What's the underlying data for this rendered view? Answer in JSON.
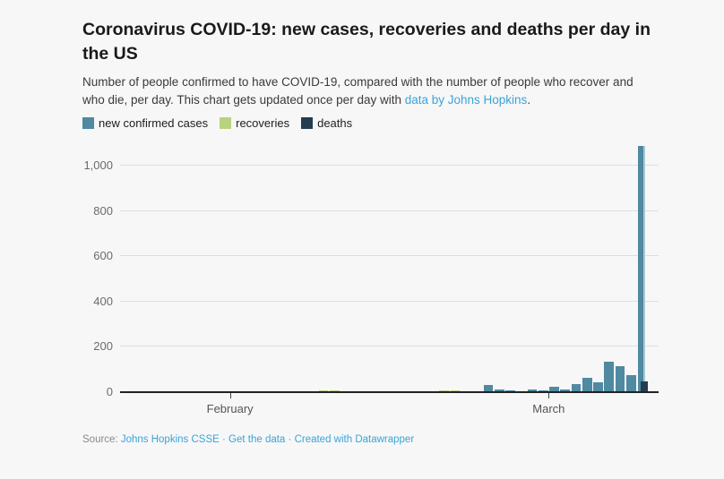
{
  "header": {
    "title": "Coronavirus COVID-19: new cases, recoveries and deaths per day in the US",
    "description_text": "Number of people confirmed to have COVID-19, compared with the number of people who recover and who die, per day. This chart gets updated once per day with ",
    "description_link": "data by Johns Hopkins",
    "description_suffix": "."
  },
  "footer": {
    "source_label": "Source:",
    "links": [
      "Johns Hopkins CSSE",
      "Get the data",
      "Created with Datawrapper"
    ],
    "separator": "·"
  },
  "colors": {
    "cases": "#4f8aa1",
    "cases_light_edge": "#abc9d5",
    "recoveries": "#b8d380",
    "deaths": "#263c4f",
    "link": "#3aa3d9",
    "gridline": "#dedede",
    "baseline": "#222222",
    "background": "#f7f7f7"
  },
  "chart_data": {
    "type": "bar",
    "title": "Coronavirus COVID-19: new cases, recoveries and deaths per day in the US",
    "xlabel": "",
    "ylabel": "",
    "ylim": [
      0,
      1090
    ],
    "grid": true,
    "legend_position": "top-left",
    "yticks": [
      {
        "value": 0,
        "label": "0"
      },
      {
        "value": 200,
        "label": "200"
      },
      {
        "value": 400,
        "label": "400"
      },
      {
        "value": 600,
        "label": "600"
      },
      {
        "value": 800,
        "label": "800"
      },
      {
        "value": 1000,
        "label": "1,000"
      }
    ],
    "x_axis_labels": [
      {
        "label": "February",
        "at": "Feb 1"
      },
      {
        "label": "March",
        "at": "Mar 1"
      }
    ],
    "dates": [
      "Jan 22",
      "Jan 23",
      "Jan 24",
      "Jan 25",
      "Jan 26",
      "Jan 27",
      "Jan 28",
      "Jan 29",
      "Jan 30",
      "Jan 31",
      "Feb 1",
      "Feb 2",
      "Feb 3",
      "Feb 4",
      "Feb 5",
      "Feb 6",
      "Feb 7",
      "Feb 8",
      "Feb 9",
      "Feb 10",
      "Feb 11",
      "Feb 12",
      "Feb 13",
      "Feb 14",
      "Feb 15",
      "Feb 16",
      "Feb 17",
      "Feb 18",
      "Feb 19",
      "Feb 20",
      "Feb 21",
      "Feb 22",
      "Feb 23",
      "Feb 24",
      "Feb 25",
      "Feb 26",
      "Feb 27",
      "Feb 28",
      "Feb 29",
      "Mar 1",
      "Mar 2",
      "Mar 3",
      "Mar 4",
      "Mar 5",
      "Mar 6",
      "Mar 7",
      "Mar 8",
      "Mar 9",
      "Mar 10"
    ],
    "series": [
      {
        "name": "new confirmed cases",
        "key": "cases",
        "values": [
          1,
          0,
          1,
          1,
          3,
          0,
          0,
          1,
          1,
          1,
          1,
          0,
          3,
          0,
          1,
          0,
          0,
          0,
          0,
          1,
          1,
          1,
          1,
          0,
          0,
          0,
          1,
          0,
          0,
          1,
          4,
          0,
          0,
          30,
          8,
          5,
          2,
          10,
          6,
          20,
          10,
          32,
          63,
          43,
          133,
          113,
          75,
          1085,
          0
        ]
      },
      {
        "name": "recoveries",
        "key": "recoveries",
        "values": [
          0,
          0,
          0,
          0,
          0,
          0,
          0,
          0,
          0,
          0,
          0,
          0,
          0,
          0,
          0,
          0,
          0,
          0,
          4,
          4,
          0,
          0,
          0,
          0,
          0,
          0,
          0,
          0,
          0,
          4,
          4,
          0,
          0,
          0,
          0,
          0,
          0,
          0,
          0,
          0,
          0,
          0,
          0,
          0,
          0,
          0,
          0,
          0,
          0
        ]
      },
      {
        "name": "deaths",
        "key": "deaths",
        "values": [
          0,
          0,
          0,
          0,
          0,
          0,
          0,
          0,
          0,
          0,
          0,
          0,
          0,
          0,
          0,
          0,
          0,
          0,
          0,
          0,
          0,
          0,
          0,
          0,
          0,
          0,
          0,
          0,
          0,
          0,
          0,
          0,
          0,
          0,
          0,
          0,
          0,
          0,
          0,
          0,
          0,
          0,
          0,
          0,
          0,
          0,
          0,
          45,
          0
        ]
      }
    ]
  }
}
